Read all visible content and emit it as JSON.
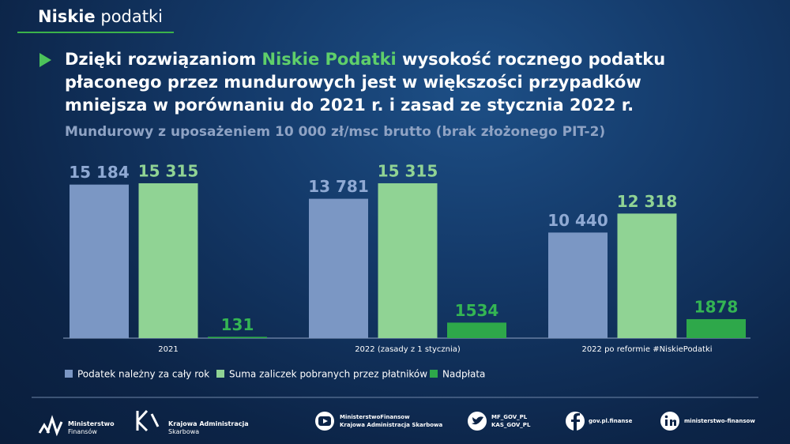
{
  "header": {
    "brand_bold": "Niskie",
    "brand_light": "podatki"
  },
  "chart_data": {
    "type": "bar",
    "title": [
      "Dzięki rozwiązaniom ",
      "Niskie Podatki",
      " wysokość rocznego podatku płaconego przez mundurowych jest w większości przypadków mniejsza w porównaniu do 2021 r. i zasad ze stycznia 2022 r."
    ],
    "subtitle": "Mundurowy z uposażeniem 10 000 zł/msc brutto (brak złożonego PIT-2)",
    "categories": [
      "2021",
      "2022 (zasady z 1 stycznia)",
      "2022 po reformie #NiskiePodatki"
    ],
    "series": [
      {
        "name": "Podatek należny za cały rok",
        "color": "#7b97c4",
        "values": [
          15184,
          13781,
          10440
        ],
        "value_labels": [
          "15 184",
          "13 781",
          "10 440"
        ]
      },
      {
        "name": "Suma zaliczek pobranych przez płatników",
        "color": "#90d394",
        "values": [
          15315,
          15315,
          12318
        ],
        "value_labels": [
          "15 315",
          "15 315",
          "12 318"
        ]
      },
      {
        "name": "Nadpłata",
        "color": "#2ea84a",
        "values": [
          131,
          1534,
          1878
        ]
      }
    ],
    "legend": "bottom"
  },
  "footer": {
    "logos": [
      [
        "Ministerstwo",
        "Finansów"
      ],
      [
        "Krajowa Administracja",
        "Skarbowa"
      ]
    ],
    "social": [
      [
        "MinisterstwoFinansow",
        "Krajowa Administracja Skarbowa"
      ],
      [
        "MF_GOV_PL",
        "KAS_GOV_PL"
      ],
      [
        "gov.pl.finanse"
      ],
      [
        "ministerstwo-finansow"
      ]
    ]
  }
}
